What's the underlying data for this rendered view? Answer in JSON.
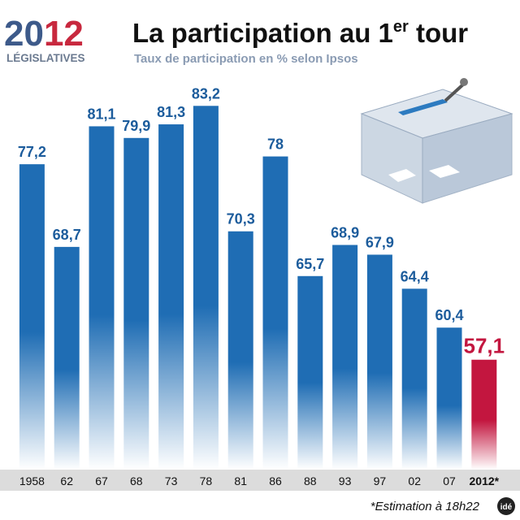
{
  "logo": {
    "year": "2012",
    "label": "LÉGISLATIVES"
  },
  "chart_data": {
    "type": "bar",
    "title": [
      "La participation au 1",
      "er",
      " tour"
    ],
    "subtitle": "Taux de participation en % selon Ipsos",
    "categories": [
      "1958",
      "62",
      "67",
      "68",
      "73",
      "78",
      "81",
      "86",
      "88",
      "93",
      "97",
      "02",
      "07",
      "2012*"
    ],
    "values": [
      77.2,
      68.7,
      81.1,
      79.9,
      81.3,
      83.2,
      70.3,
      78,
      65.7,
      68.9,
      67.9,
      64.4,
      60.4,
      57.1
    ],
    "value_labels": [
      "77,2",
      "68,7",
      "81,1",
      "79,9",
      "81,3",
      "83,2",
      "70,3",
      "78",
      "65,7",
      "68,9",
      "67,9",
      "64,4",
      "60,4",
      "57,1"
    ],
    "colors": [
      "#1f6db4",
      "#1f6db4",
      "#1f6db4",
      "#1f6db4",
      "#1f6db4",
      "#1f6db4",
      "#1f6db4",
      "#1f6db4",
      "#1f6db4",
      "#1f6db4",
      "#1f6db4",
      "#1f6db4",
      "#1f6db4",
      "#c3163f"
    ],
    "ylim": [
      45.8,
      93
    ],
    "footnote": "*Estimation à 18h22",
    "source": "idé"
  }
}
